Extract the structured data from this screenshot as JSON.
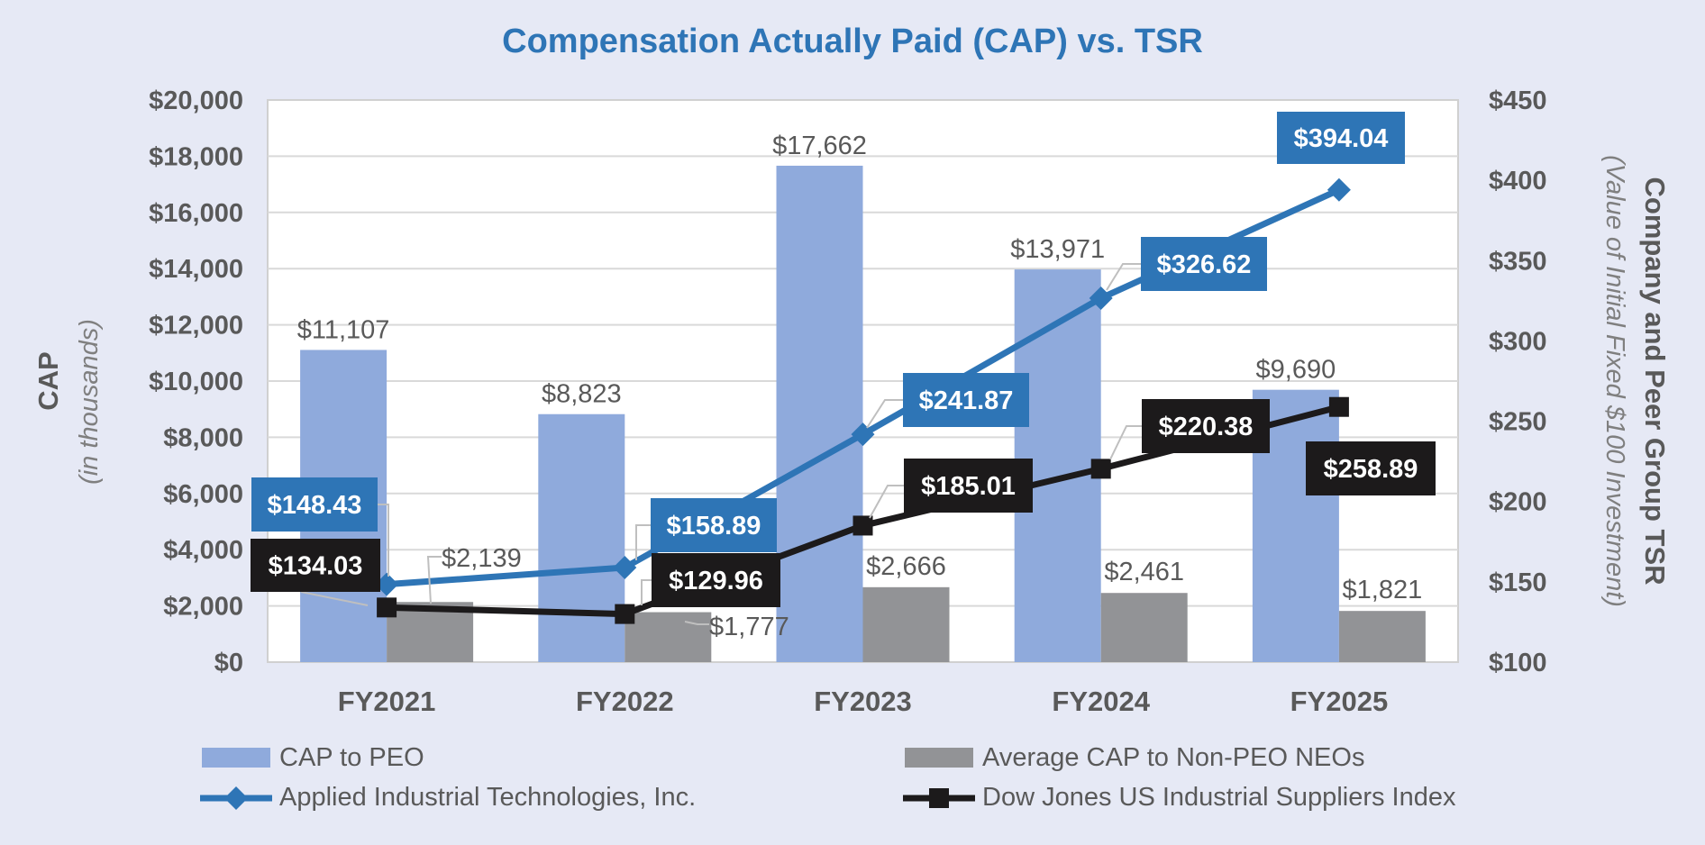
{
  "chart_data": {
    "type": "bar",
    "title": "Compensation Actually Paid (CAP) vs. TSR",
    "categories": [
      "FY2021",
      "FY2022",
      "FY2023",
      "FY2024",
      "FY2025"
    ],
    "left_axis": {
      "label": "CAP",
      "sublabel": "(in thousands)",
      "range": [
        0,
        20000
      ],
      "ticks": [
        0,
        2000,
        4000,
        6000,
        8000,
        10000,
        12000,
        14000,
        16000,
        18000,
        20000
      ],
      "tick_labels": [
        "$0",
        "$2,000",
        "$4,000",
        "$6,000",
        "$8,000",
        "$10,000",
        "$12,000",
        "$14,000",
        "$16,000",
        "$18,000",
        "$20,000"
      ]
    },
    "right_axis": {
      "label": "Company and Peer Group TSR",
      "sublabel": "(Value of Initial Fixed $100 Investment)",
      "range": [
        100,
        450
      ],
      "ticks": [
        100,
        150,
        200,
        250,
        300,
        350,
        400,
        450
      ],
      "tick_labels": [
        "$100",
        "$150",
        "$200",
        "$250",
        "$300",
        "$350",
        "$400",
        "$450"
      ]
    },
    "bar_series": [
      {
        "name": "CAP to PEO",
        "color": "#8faadc",
        "values": [
          11107,
          8823,
          17662,
          13971,
          9690
        ],
        "labels": [
          "$11,107",
          "$8,823",
          "$17,662",
          "$13,971",
          "$9,690"
        ]
      },
      {
        "name": "Average CAP to Non-PEO NEOs",
        "color": "#929396",
        "values": [
          2139,
          1777,
          2666,
          2461,
          1821
        ],
        "labels": [
          "$2,139",
          "$1,777",
          "$2,666",
          "$2,461",
          "$1,821"
        ]
      }
    ],
    "line_series": [
      {
        "name": "Applied Industrial Technologies, Inc.",
        "color": "#2e75b6",
        "marker": "diamond",
        "values": [
          148.43,
          158.89,
          241.87,
          326.62,
          394.04
        ],
        "labels": [
          "$148.43",
          "$158.89",
          "$241.87",
          "$326.62",
          "$394.04"
        ]
      },
      {
        "name": "Dow Jones US Industrial Suppliers Index",
        "color": "#1c1a1b",
        "marker": "square",
        "values": [
          134.03,
          129.96,
          185.01,
          220.38,
          258.89
        ],
        "labels": [
          "$134.03",
          "$129.96",
          "$185.01",
          "$220.38",
          "$258.89"
        ]
      }
    ],
    "legend_position": "bottom",
    "grid": true
  }
}
